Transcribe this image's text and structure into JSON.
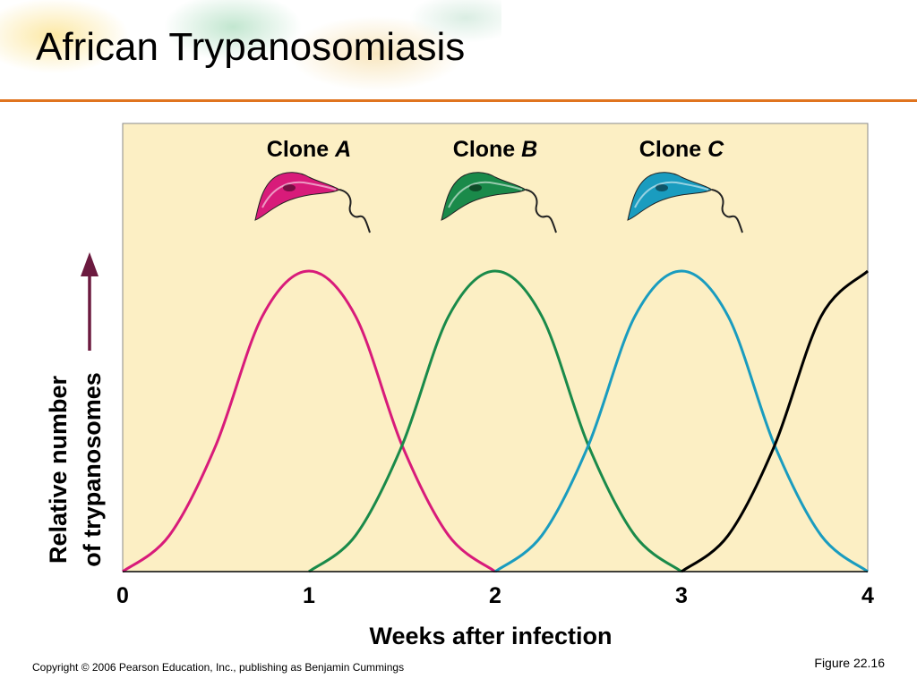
{
  "slide": {
    "title": "African Trypanosomiasis",
    "copyright": "Copyright © 2006 Pearson Education, Inc., publishing as Benjamin Cummings",
    "figure": "Figure 22.16"
  },
  "colors": {
    "plot_bg": "#fcefc4",
    "accent_rule": "#e0741f",
    "arrow": "#6b1a3f"
  },
  "chart_data": {
    "type": "line",
    "xlabel": "Weeks after infection",
    "ylabel_line1": "Relative number",
    "ylabel_line2": "of trypanosomes",
    "xlim": [
      0,
      4
    ],
    "ylim": [
      0,
      1
    ],
    "x_ticks": [
      "0",
      "1",
      "2",
      "3",
      "4"
    ],
    "grid": false,
    "series": [
      {
        "name": "Clone A",
        "label_prefix": "Clone",
        "label_letter": "A",
        "color": "#d81b7a",
        "icon": "pink-trypanosome-icon",
        "x": [
          0,
          0.25,
          0.5,
          0.75,
          1,
          1.25,
          1.5,
          1.75,
          2
        ],
        "y": [
          0,
          0.12,
          0.42,
          0.85,
          1,
          0.85,
          0.42,
          0.12,
          0
        ]
      },
      {
        "name": "Clone B",
        "label_prefix": "Clone",
        "label_letter": "B",
        "color": "#1a8a4a",
        "icon": "green-trypanosome-icon",
        "x": [
          1,
          1.25,
          1.5,
          1.75,
          2,
          2.25,
          2.5,
          2.75,
          3
        ],
        "y": [
          0,
          0.12,
          0.42,
          0.85,
          1,
          0.85,
          0.42,
          0.12,
          0
        ]
      },
      {
        "name": "Clone C",
        "label_prefix": "Clone",
        "label_letter": "C",
        "color": "#1a9cbf",
        "icon": "blue-trypanosome-icon",
        "x": [
          2,
          2.25,
          2.5,
          2.75,
          3,
          3.25,
          3.5,
          3.75,
          4
        ],
        "y": [
          0,
          0.12,
          0.42,
          0.85,
          1,
          0.85,
          0.42,
          0.12,
          0
        ]
      },
      {
        "color": "#000000",
        "x": [
          3,
          3.25,
          3.5,
          3.75,
          4
        ],
        "y": [
          0,
          0.12,
          0.42,
          0.85,
          1
        ]
      }
    ]
  }
}
